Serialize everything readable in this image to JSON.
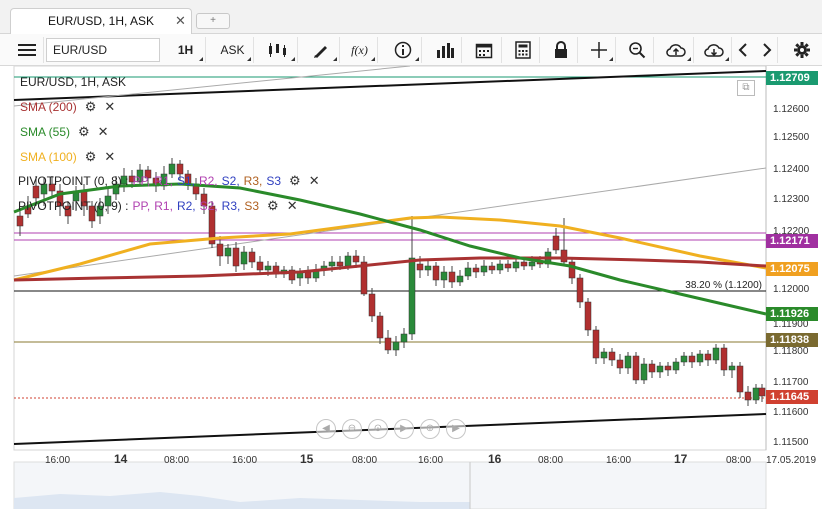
{
  "tab": {
    "label": "EUR/USD, 1H, ASK",
    "close": "✕",
    "add": "+"
  },
  "toolbar": {
    "menu_icon": "hamburger-icon",
    "symbol": "EUR/USD",
    "timeframe": "1H",
    "side": "ASK",
    "fx_label": "f(x)"
  },
  "chart": {
    "title": "EUR/USD, 1H, ASK",
    "indicators": [
      {
        "label": "SMA (200)",
        "color": "#a83232"
      },
      {
        "label": "SMA (55)",
        "color": "#2a8a2a"
      },
      {
        "label": "SMA (100)",
        "color": "#f0b020"
      }
    ],
    "pivots": [
      {
        "prefix": "PIVOTPOINT (0, 8)",
        "items": [
          "PP",
          "R1",
          "S1",
          "R2",
          "S2",
          "R3",
          "S3"
        ]
      },
      {
        "prefix": "PIVOTPOINT (0, 9)",
        "items": [
          "PP",
          "R1",
          "R2",
          "S2",
          "R3",
          "S3"
        ]
      }
    ],
    "pivot_colors": [
      "#b040b0",
      "#b040b0",
      "#3040c0",
      "#b040b0",
      "#3040c0",
      "#b06020",
      "#3040c0"
    ],
    "fib_label": "38.20 % (1.1200)",
    "y_ticks": [
      "1.12600",
      "1.12500",
      "1.12400",
      "1.12300",
      "1.12200",
      "1.12000",
      "1.11900",
      "1.11800",
      "1.11700",
      "1.11600",
      "1.11500"
    ],
    "x_ticks": [
      "16:00",
      "14",
      "08:00",
      "16:00",
      "15",
      "08:00",
      "16:00",
      "16",
      "08:00",
      "16:00",
      "17",
      "08:00",
      "17.05.2019"
    ],
    "price_tags": [
      {
        "value": "1.12709",
        "color": "#1a9a70"
      },
      {
        "value": "1.12171",
        "color": "#a030a0"
      },
      {
        "value": "1.12075",
        "color": "#f0a020"
      },
      {
        "value": "1.11926",
        "color": "#2a8a2a"
      },
      {
        "value": "1.11838",
        "color": "#7a6a30"
      },
      {
        "value": "1.11645",
        "color": "#d04030"
      }
    ],
    "x_range": [
      "2019-05-13 12:00",
      "2019-05-17 10:00"
    ],
    "y_range": [
      1.1145,
      1.1275
    ]
  }
}
